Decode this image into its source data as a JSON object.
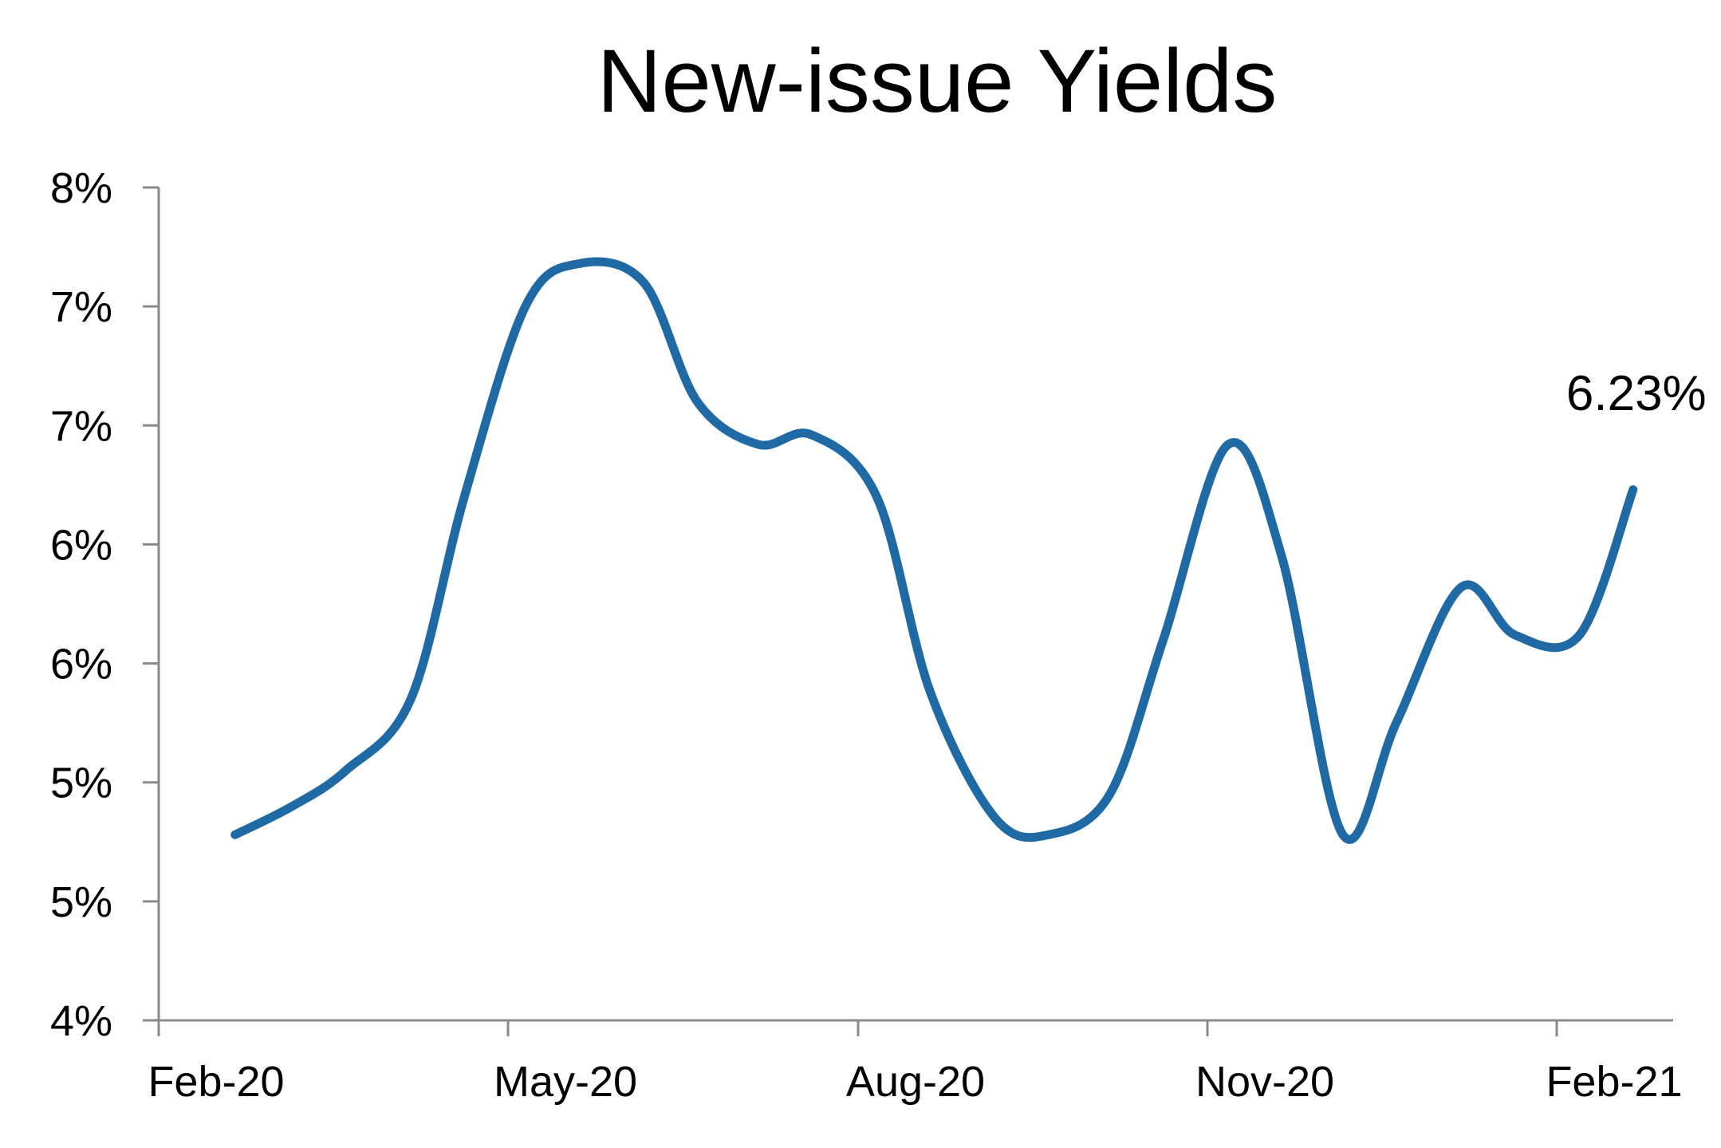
{
  "chart_data": {
    "type": "line",
    "title": "New-issue Yields",
    "xlabel": "",
    "ylabel": "",
    "x_tick_labels": [
      "Feb-20",
      "May-20",
      "Aug-20",
      "Nov-20",
      "Feb-21"
    ],
    "y_tick_labels": [
      "4%",
      "5%",
      "5%",
      "6%",
      "6%",
      "7%",
      "7%",
      "8%"
    ],
    "ylim": [
      4.0,
      7.5
    ],
    "grid": false,
    "legend": "none",
    "line_color": "#1f6aa5",
    "series": [
      {
        "x": [
          "2020-02-15",
          "2020-03-01",
          "2020-03-15",
          "2020-04-01",
          "2020-04-15",
          "2020-05-01",
          "2020-05-15",
          "2020-06-01",
          "2020-06-15",
          "2020-07-01",
          "2020-07-15",
          "2020-08-01",
          "2020-08-15",
          "2020-09-01",
          "2020-09-15",
          "2020-10-01",
          "2020-10-15",
          "2020-11-01",
          "2020-11-15",
          "2020-12-01",
          "2020-12-15",
          "2021-01-01",
          "2021-01-15",
          "2021-02-01",
          "2021-02-15"
        ],
        "values": [
          4.78,
          4.9,
          5.05,
          5.35,
          6.2,
          7.0,
          7.18,
          7.1,
          6.6,
          6.42,
          6.46,
          6.2,
          5.38,
          4.85,
          4.78,
          4.95,
          5.6,
          6.42,
          5.95,
          4.78,
          5.25,
          5.82,
          5.62,
          5.62,
          6.23
        ]
      }
    ],
    "annotations": [
      {
        "label": "6.23%",
        "x": "2021-02-15",
        "y": 6.23
      }
    ]
  }
}
